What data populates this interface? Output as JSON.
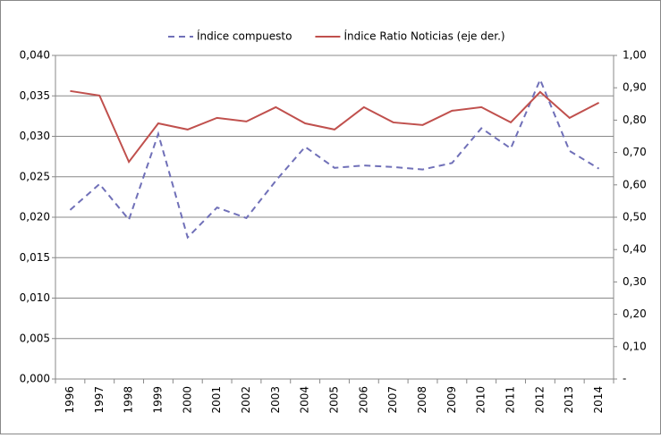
{
  "chart_data": {
    "type": "line",
    "categories": [
      "1996",
      "1997",
      "1998",
      "1999",
      "2000",
      "2001",
      "2002",
      "2003",
      "2004",
      "2005",
      "2006",
      "2007",
      "2008",
      "2009",
      "2010",
      "2011",
      "2012",
      "2013",
      "2014"
    ],
    "series": [
      {
        "name": "Índice compuesto",
        "color": "#7070b8",
        "dash": true,
        "values": [
          0.0209,
          0.0241,
          0.0197,
          0.0303,
          0.0175,
          0.0212,
          0.0199,
          0.0245,
          0.0287,
          0.0261,
          0.0264,
          0.0262,
          0.0259,
          0.0267,
          0.031,
          0.0285,
          0.037,
          0.0282,
          0.026
        ]
      },
      {
        "name": "Índice Ratio Noticias (eje der.)",
        "color": "#c0504d",
        "axis": "y2",
        "values": [
          0.89,
          0.876,
          0.671,
          0.79,
          0.771,
          0.807,
          0.796,
          0.84,
          0.79,
          0.771,
          0.84,
          0.793,
          0.785,
          0.829,
          0.84,
          0.793,
          0.887,
          0.807,
          0.854
        ]
      }
    ],
    "ylim": [
      0,
      0.04
    ],
    "yticks": [
      {
        "value": 0,
        "label": "0,000"
      },
      {
        "value": 0.005,
        "label": "0,005"
      },
      {
        "value": 0.01,
        "label": "0,010"
      },
      {
        "value": 0.015,
        "label": "0,015"
      },
      {
        "value": 0.02,
        "label": "0,020"
      },
      {
        "value": 0.025,
        "label": "0,025"
      },
      {
        "value": 0.03,
        "label": "0,030"
      },
      {
        "value": 0.035,
        "label": "0,035"
      },
      {
        "value": 0.04,
        "label": "0,040"
      }
    ],
    "y2lim": [
      0,
      1
    ],
    "y2ticks": [
      {
        "value": 0,
        "label": "-"
      },
      {
        "value": 0.1,
        "label": "0,10"
      },
      {
        "value": 0.2,
        "label": "0,20"
      },
      {
        "value": 0.3,
        "label": "0,30"
      },
      {
        "value": 0.4,
        "label": "0,40"
      },
      {
        "value": 0.5,
        "label": "0,50"
      },
      {
        "value": 0.6,
        "label": "0,60"
      },
      {
        "value": 0.7,
        "label": "0,70"
      },
      {
        "value": 0.8,
        "label": "0,80"
      },
      {
        "value": 0.9,
        "label": "0,90"
      },
      {
        "value": 1,
        "label": "1,00"
      }
    ],
    "grid": true,
    "legend": "top"
  }
}
